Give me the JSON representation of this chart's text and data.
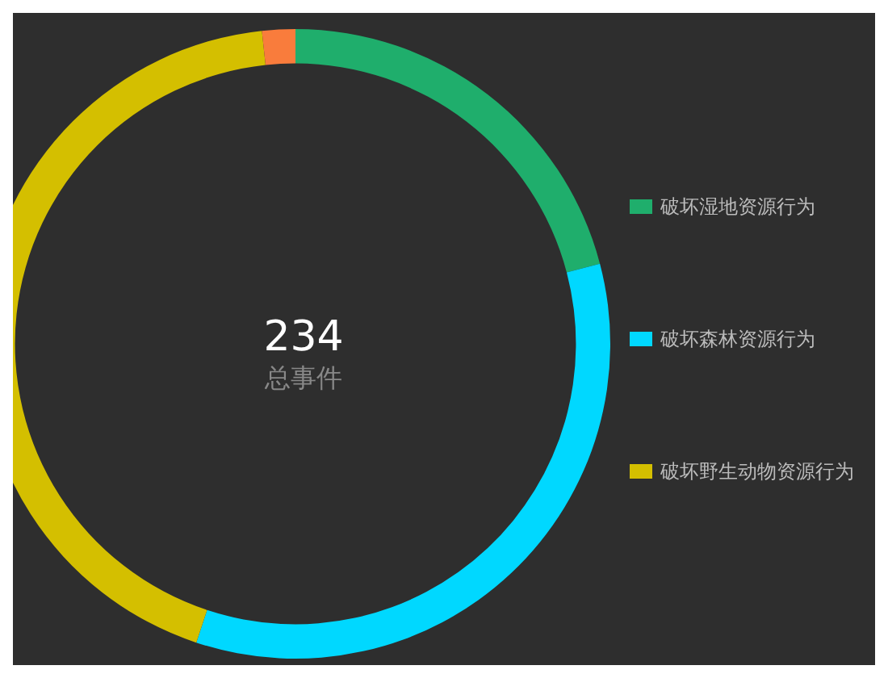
{
  "chart_data": {
    "type": "donut",
    "title": "234",
    "subtitle": "总事件",
    "categories": [
      "破坏湿地资源行为",
      "破坏森林资源行为",
      "破坏野生动物资源行为",
      null
    ],
    "values": [
      20.9,
      34.2,
      43.2,
      1.7
    ],
    "colors": [
      "#1fae6c",
      "#00d8ff",
      "#d4bf00",
      "#f97c3c"
    ],
    "legend": "right"
  }
}
